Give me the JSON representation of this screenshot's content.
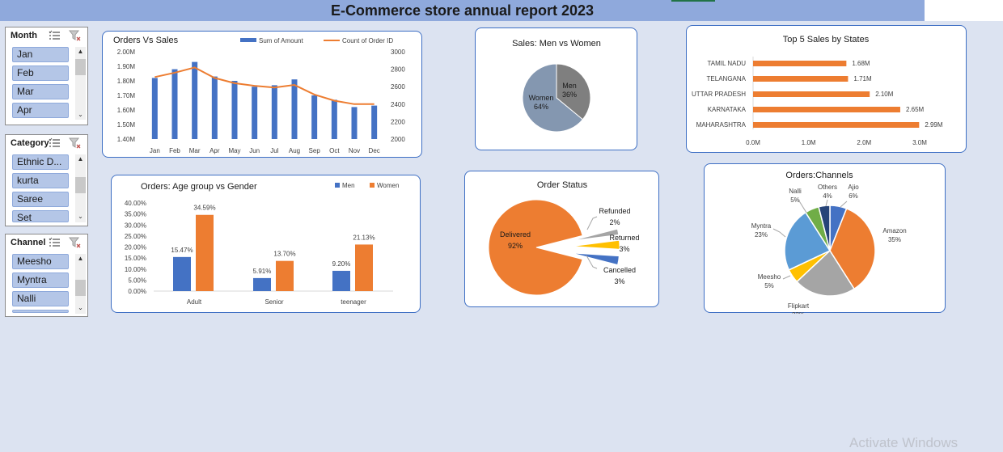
{
  "report": {
    "title": "E-Commerce store annual report 2023"
  },
  "slicers": {
    "month": {
      "title": "Month",
      "items": [
        "Jan",
        "Feb",
        "Mar",
        "Apr"
      ]
    },
    "category": {
      "title": "Category",
      "items": [
        "Ethnic D...",
        "kurta",
        "Saree",
        "Set"
      ]
    },
    "channel": {
      "title": "Channel",
      "items": [
        "Meesho",
        "Myntra",
        "Nalli",
        ""
      ]
    }
  },
  "colors": {
    "blue": "#4472c4",
    "orange": "#ed7d31",
    "gray": "#a5a5a5",
    "yellow": "#ffc000",
    "sky": "#5b9bd5",
    "green": "#70ad47",
    "navy": "#264478",
    "women": "#8497b0",
    "men": "#7f7f7f",
    "accent": "#3e6fc4"
  },
  "watermark": "Activate Windows",
  "chart_data": [
    {
      "type": "bar",
      "title": "Orders Vs Sales",
      "categories": [
        "Jan",
        "Feb",
        "Mar",
        "Apr",
        "May",
        "Jun",
        "Jul",
        "Aug",
        "Sep",
        "Oct",
        "Nov",
        "Dec"
      ],
      "series": [
        {
          "name": "Sum of Amount",
          "kind": "bar",
          "axis": "left",
          "values": [
            1.82,
            1.88,
            1.93,
            1.83,
            1.8,
            1.76,
            1.77,
            1.81,
            1.7,
            1.67,
            1.62,
            1.63
          ]
        },
        {
          "name": "Count of Order ID",
          "kind": "line",
          "axis": "right",
          "values": [
            2710,
            2760,
            2820,
            2700,
            2640,
            2610,
            2590,
            2620,
            2510,
            2440,
            2400,
            2400
          ]
        }
      ],
      "left_ticks": [
        "1.40M",
        "1.50M",
        "1.60M",
        "1.70M",
        "1.80M",
        "1.90M",
        "2.00M"
      ],
      "right_ticks": [
        "2000",
        "2200",
        "2400",
        "2600",
        "2800",
        "3000"
      ],
      "ylim_left": [
        1.4,
        2.0
      ],
      "ylim_right": [
        2000,
        3000
      ]
    },
    {
      "type": "pie",
      "title": "Sales: Men vs Women",
      "slices": [
        {
          "label": "Men",
          "pct": "36%",
          "value": 36
        },
        {
          "label": "Women",
          "pct": "64%",
          "value": 64
        }
      ]
    },
    {
      "type": "bar",
      "orientation": "horizontal",
      "title": "Top 5 Sales by States",
      "categories": [
        "TAMIL NADU",
        "TELANGANA",
        "UTTAR PRADESH",
        "KARNATAKA",
        "MAHARASHTRA"
      ],
      "values": [
        1.68,
        1.71,
        2.1,
        2.65,
        2.99
      ],
      "value_labels": [
        "1.68M",
        "1.71M",
        "2.10M",
        "2.65M",
        "2.99M"
      ],
      "x_ticks": [
        "0.0M",
        "1.0M",
        "2.0M",
        "3.0M"
      ],
      "xlim": [
        0,
        3.0
      ]
    },
    {
      "type": "bar",
      "title": "Orders: Age group vs Gender",
      "categories": [
        "Adult",
        "Senior",
        "teenager"
      ],
      "series": [
        {
          "name": "Men",
          "values": [
            15.47,
            5.91,
            9.2
          ],
          "labels": [
            "15.47%",
            "5.91%",
            "9.20%"
          ]
        },
        {
          "name": "Women",
          "values": [
            34.59,
            13.7,
            21.13
          ],
          "labels": [
            "34.59%",
            "13.70%",
            "21.13%"
          ]
        }
      ],
      "y_ticks": [
        "0.00%",
        "5.00%",
        "10.00%",
        "15.00%",
        "20.00%",
        "25.00%",
        "30.00%",
        "35.00%",
        "40.00%"
      ],
      "ylim": [
        0,
        40
      ]
    },
    {
      "type": "pie",
      "title": "Order Status",
      "slices": [
        {
          "label": "Delivered",
          "pct": "92%",
          "value": 92
        },
        {
          "label": "Refunded",
          "pct": "2%",
          "value": 2
        },
        {
          "label": "Returned",
          "pct": "3%",
          "value": 3
        },
        {
          "label": "Cancelled",
          "pct": "3%",
          "value": 3
        }
      ]
    },
    {
      "type": "pie",
      "title": "Orders:Channels",
      "slices": [
        {
          "label": "Ajio",
          "pct": "6%",
          "value": 6
        },
        {
          "label": "Amazon",
          "pct": "35%",
          "value": 35
        },
        {
          "label": "Flipkart",
          "pct": "22%",
          "value": 22
        },
        {
          "label": "Meesho",
          "pct": "5%",
          "value": 5
        },
        {
          "label": "Myntra",
          "pct": "23%",
          "value": 23
        },
        {
          "label": "Nalli",
          "pct": "5%",
          "value": 5
        },
        {
          "label": "Others",
          "pct": "4%",
          "value": 4
        }
      ]
    }
  ]
}
